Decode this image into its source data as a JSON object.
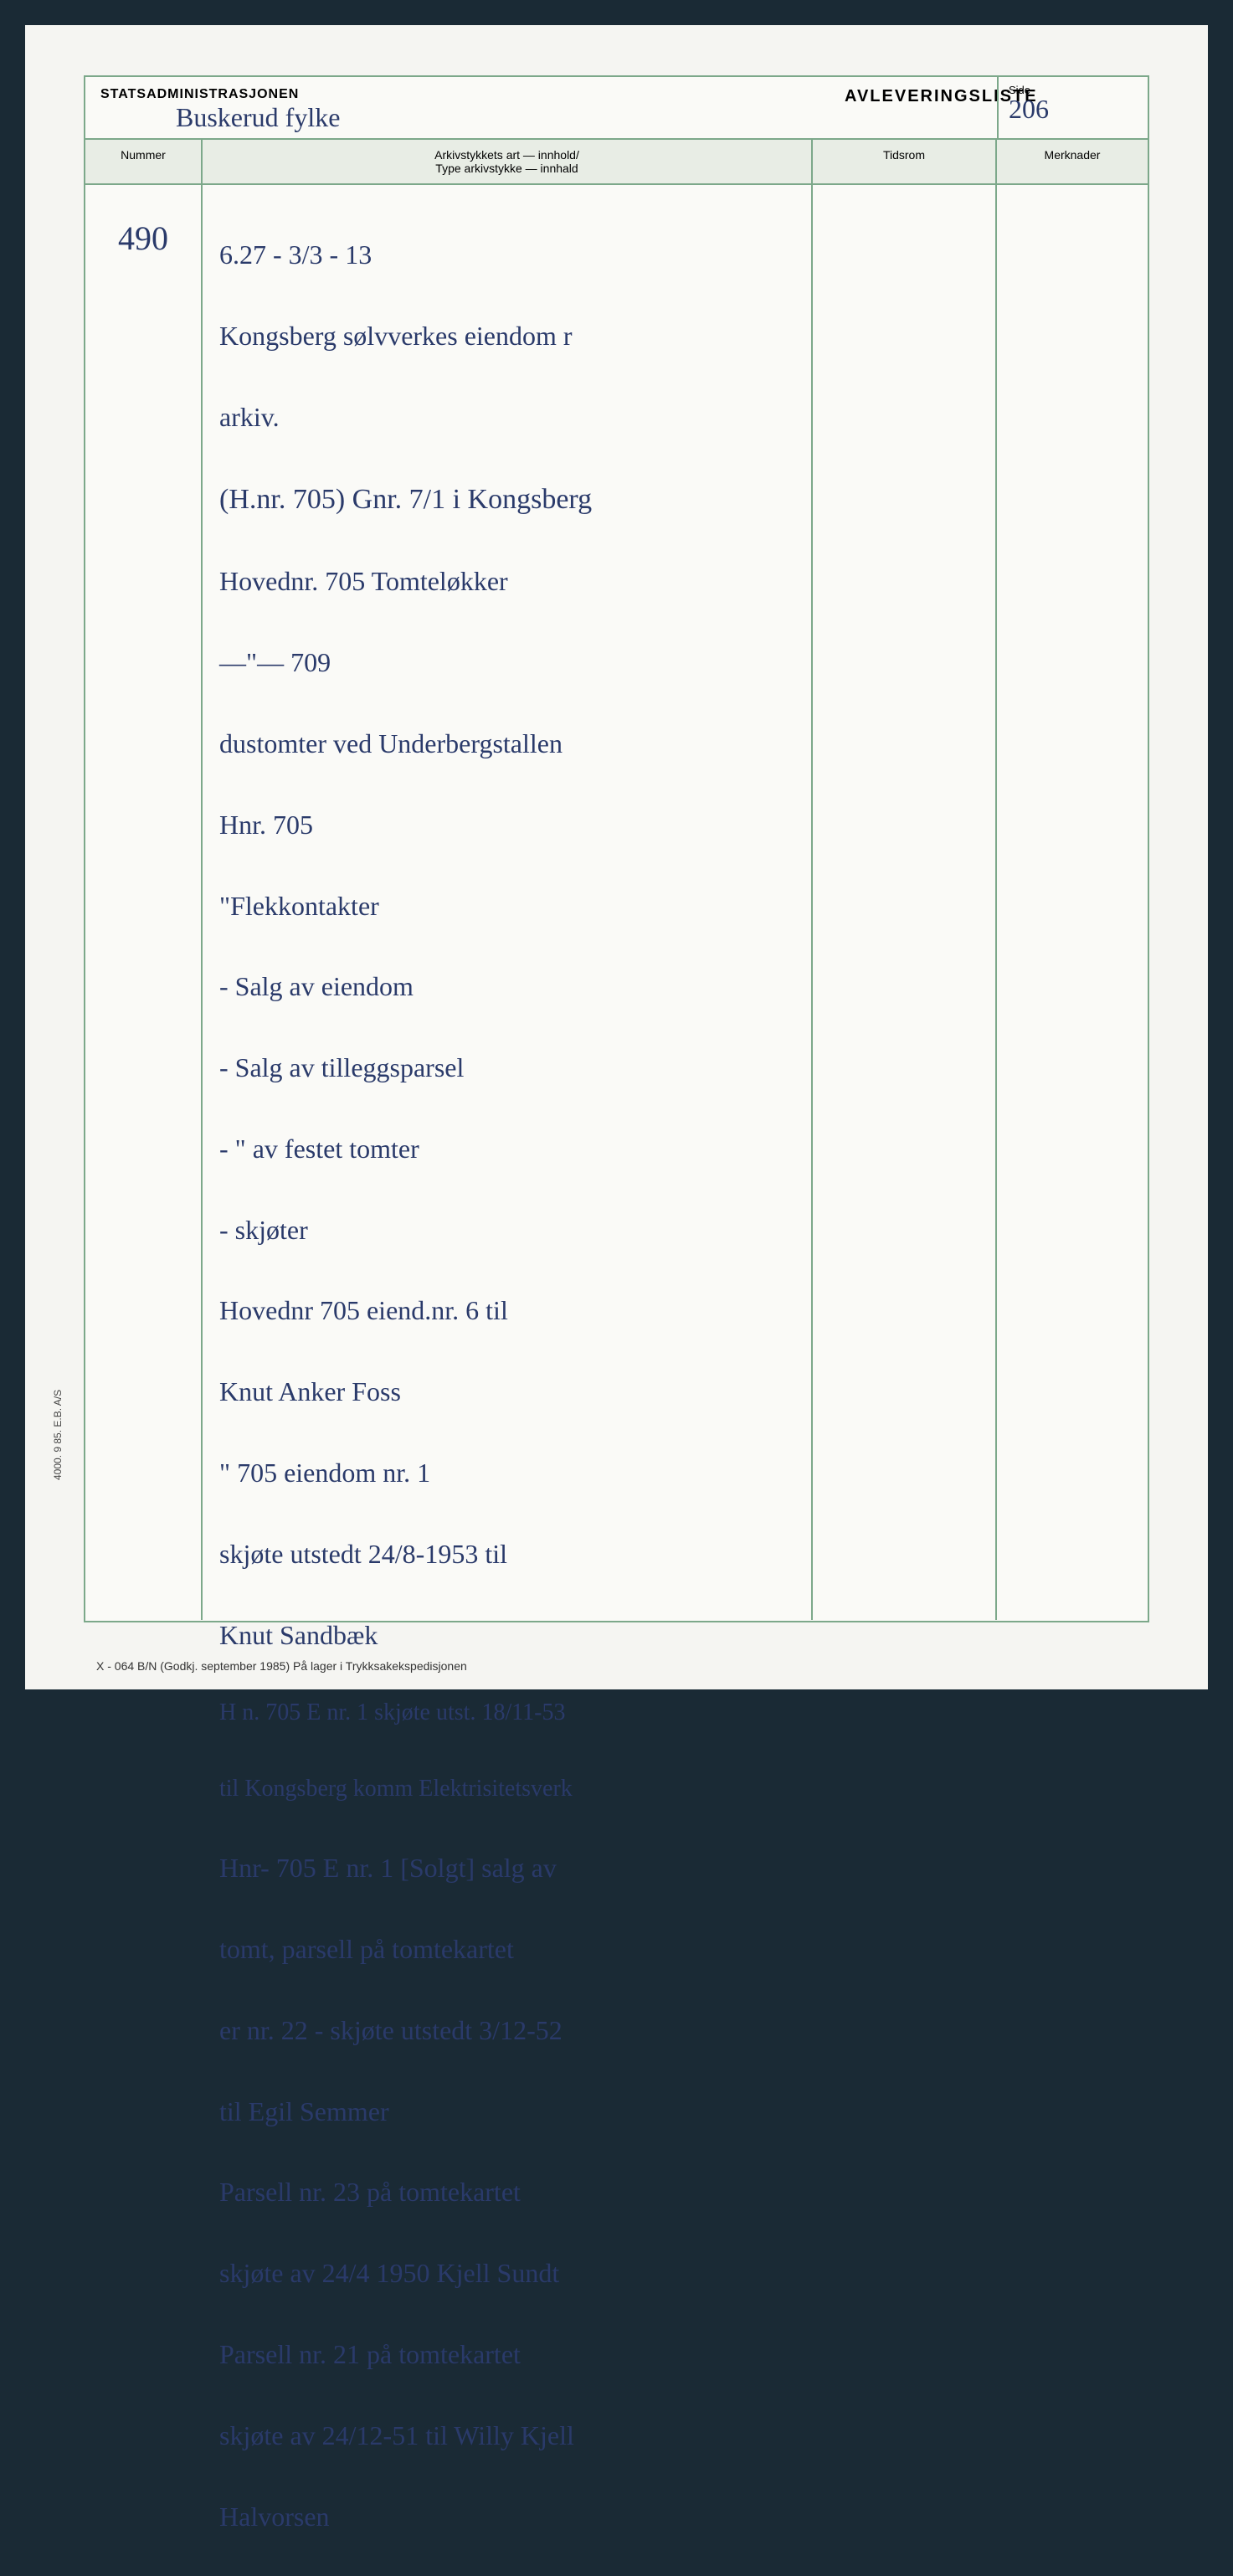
{
  "document": {
    "background_color": "#1a2a35",
    "page_color": "#f5f5f2",
    "border_color": "#7ca88a",
    "handwriting_color": "#2a3a6a"
  },
  "header": {
    "org_title": "STATSADMINISTRASJONEN",
    "handwritten_subtitle": "Buskerud fylke",
    "main_title": "AVLEVERINGSLISTE",
    "side_label": "Side",
    "side_value": "206"
  },
  "columns": {
    "nummer": "Nummer",
    "innhold_line1": "Arkivstykkets art — innhold/",
    "innhold_line2": "Type arkivstykke — innhald",
    "tidsrom": "Tidsrom",
    "merknader": "Merknader"
  },
  "entry": {
    "nummer": "490",
    "lines": [
      "6.27 - 3/3 - 13",
      "Kongsberg sølvverkes eiendom r",
      "arkiv.",
      "(H.nr. 705) Gnr. 7/1 i Kongsberg",
      "Hovednr.  705   Tomteløkker",
      "  —\"—     709",
      "dustomter ved Underbergstallen",
      "Hnr. 705",
      "\"Flekkontakter",
      "- Salg av eiendom",
      "- Salg av tilleggsparsel",
      "-  \"  av festet tomter",
      "- skjøter",
      "Hovednr 705 eiend.nr. 6 til",
      "            Knut Anker Foss",
      "  \"  705 eiendom nr. 1",
      "skjøte utstedt 24/8-1953 til",
      "            Knut Sandbæk",
      "H n. 705 E nr. 1 skjøte utst. 18/11-53",
      "til Kongsberg komm Elektrisitetsverk",
      "Hnr- 705 E nr. 1 [Solgt] salg av",
      "tomt, parsell på tomtekartet",
      "er nr. 22 - skjøte utstedt 3/12-52",
      "       til Egil Semmer",
      "Parsell nr. 23 på tomtekartet",
      "skjøte av 24/4 1950 Kjell Sundt",
      "Parsell nr. 21 på tomtekartet",
      "skjøte av 24/12-51 til Willy Kjell",
      "            Halvorsen"
    ]
  },
  "footer": {
    "vertical": "4000. 9 85. E.B. A/S",
    "bottom": "X - 064 B/N (Godkj. september 1985) På lager i Trykksakekspedisjonen"
  }
}
